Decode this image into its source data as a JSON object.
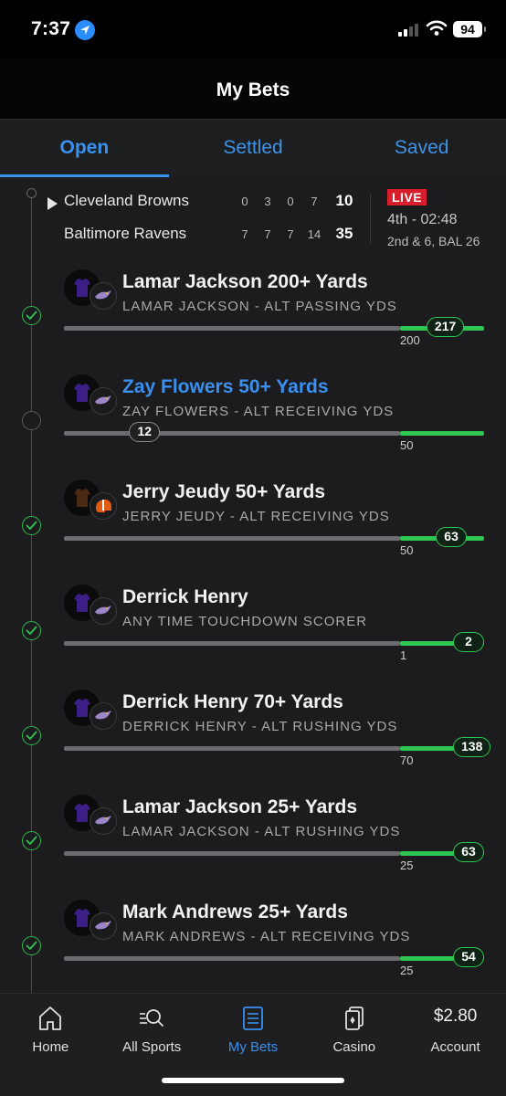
{
  "status_bar": {
    "time": "7:37",
    "battery": "94"
  },
  "header": {
    "title": "My Bets"
  },
  "tabs": [
    {
      "label": "Open",
      "active": true
    },
    {
      "label": "Settled",
      "active": false
    },
    {
      "label": "Saved",
      "active": false
    }
  ],
  "game": {
    "teams": [
      {
        "name": "Cleveland Browns",
        "quarters": [
          "0",
          "3",
          "0",
          "7"
        ],
        "total": "10"
      },
      {
        "name": "Baltimore Ravens",
        "quarters": [
          "7",
          "7",
          "7",
          "14"
        ],
        "total": "35"
      }
    ],
    "live_label": "LIVE",
    "clock": "4th - 02:48",
    "down_distance": "2nd & 6, BAL 26"
  },
  "bets": [
    {
      "title": "Lamar Jackson 200+ Yards",
      "subtitle": "LAMAR JACKSON - ALT PASSING YDS",
      "target": "200",
      "current": "217",
      "status": "won",
      "team": "BAL",
      "progress_fraction": 1.085
    },
    {
      "title": "Zay Flowers 50+ Yards",
      "subtitle": "ZAY FLOWERS - ALT RECEIVING YDS",
      "target": "50",
      "current": "12",
      "status": "pending",
      "team": "BAL",
      "progress_fraction": 0.24
    },
    {
      "title": "Jerry Jeudy 50+ Yards",
      "subtitle": "JERRY JEUDY - ALT RECEIVING YDS",
      "target": "50",
      "current": "63",
      "status": "won",
      "team": "CLE",
      "progress_fraction": 1.26
    },
    {
      "title": "Derrick Henry",
      "subtitle": "ANY TIME TOUCHDOWN SCORER",
      "target": "1",
      "current": "2",
      "status": "won",
      "team": "BAL",
      "progress_fraction": 2
    },
    {
      "title": "Derrick Henry 70+ Yards",
      "subtitle": "DERRICK HENRY - ALT RUSHING YDS",
      "target": "70",
      "current": "138",
      "status": "won",
      "team": "BAL",
      "progress_fraction": 1.97
    },
    {
      "title": "Lamar Jackson 25+ Yards",
      "subtitle": "LAMAR JACKSON - ALT RUSHING YDS",
      "target": "25",
      "current": "63",
      "status": "won",
      "team": "BAL",
      "progress_fraction": 2.52
    },
    {
      "title": "Mark Andrews 25+ Yards",
      "subtitle": "MARK ANDREWS - ALT RECEIVING YDS",
      "target": "25",
      "current": "54",
      "status": "won",
      "team": "BAL",
      "progress_fraction": 2.16
    }
  ],
  "nav": [
    {
      "label": "Home",
      "icon": "home-icon"
    },
    {
      "label": "All Sports",
      "icon": "search-sports-icon"
    },
    {
      "label": "My Bets",
      "icon": "bet-slip-icon",
      "active": true
    },
    {
      "label": "Casino",
      "icon": "cards-icon"
    },
    {
      "label": "Account",
      "balance": "$2.80"
    }
  ],
  "colors": {
    "accent": "#3a90f0",
    "win": "#2fc553",
    "live": "#d91e2b",
    "ravens_purple": "#3b1f86",
    "browns_brown": "#4a2a12",
    "browns_orange": "#e35a12"
  }
}
